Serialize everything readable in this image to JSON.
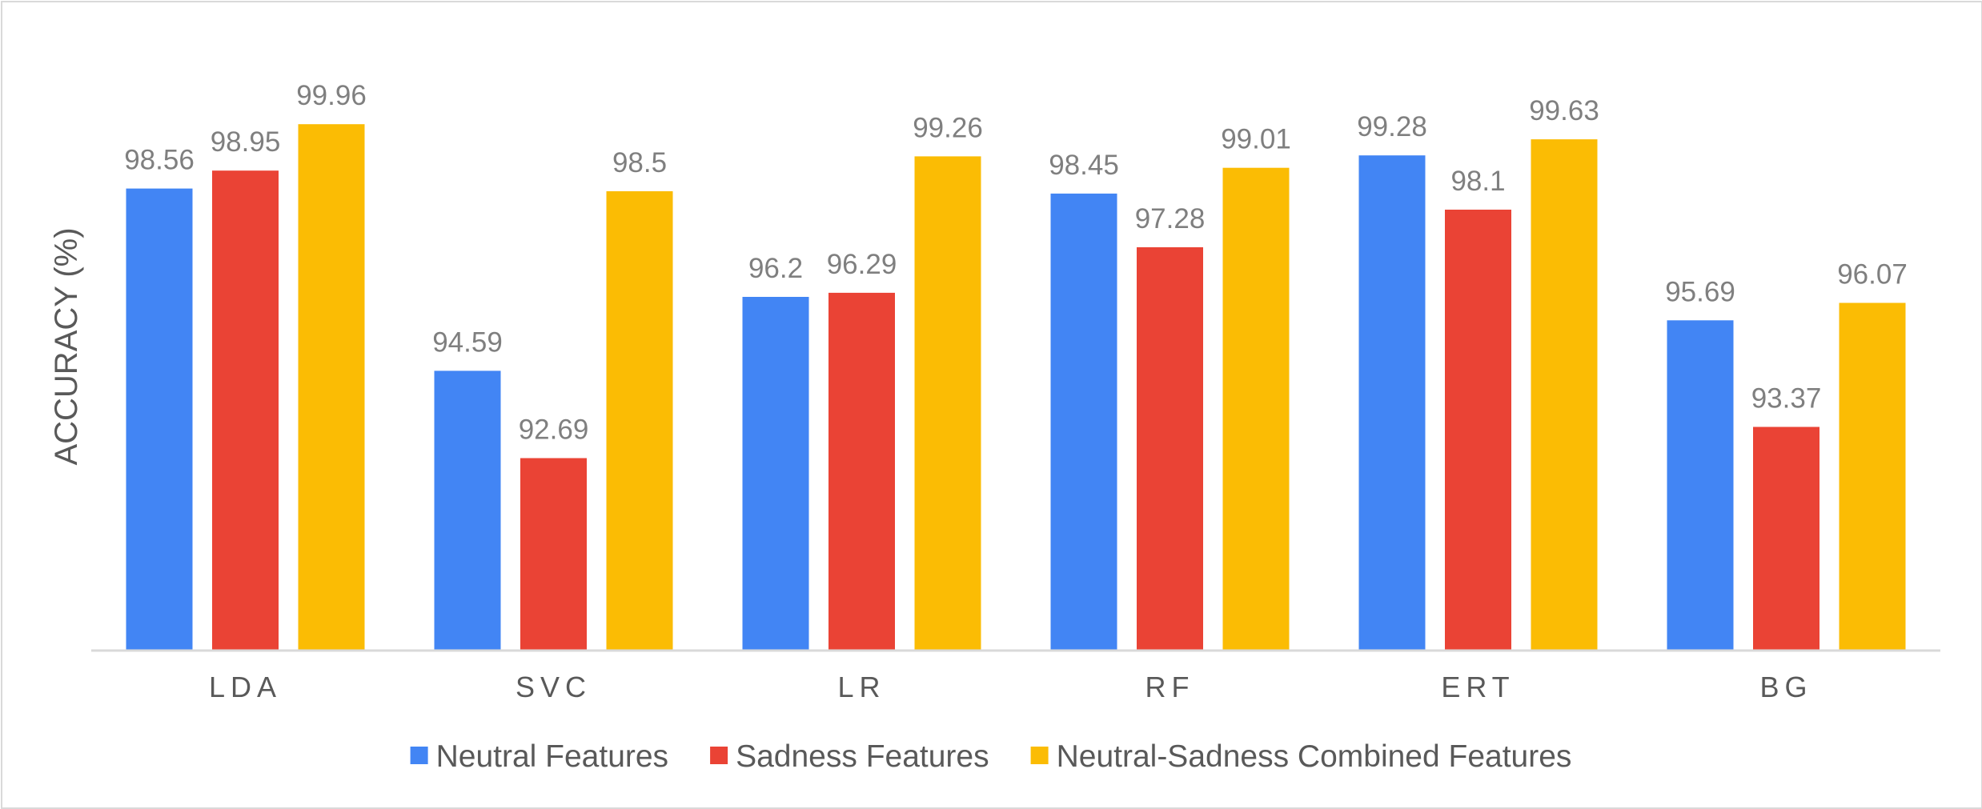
{
  "chart_data": {
    "type": "bar",
    "title": "",
    "xlabel": "",
    "ylabel": "ACCURACY (%)",
    "ylim": [
      88.5,
      100.7
    ],
    "grid": false,
    "legend_position": "bottom",
    "categories": [
      "LDA",
      "SVC",
      "LR",
      "RF",
      "ERT",
      "BG"
    ],
    "series": [
      {
        "name": "Neutral Features",
        "color": "#4285f4",
        "values": [
          98.56,
          94.59,
          96.2,
          98.45,
          99.28,
          95.69
        ]
      },
      {
        "name": "Sadness Features",
        "color": "#ea4335",
        "values": [
          98.95,
          92.69,
          96.29,
          97.28,
          98.1,
          93.37
        ]
      },
      {
        "name": "Neutral-Sadness Combined Features",
        "color": "#fbbc04",
        "values": [
          99.96,
          98.5,
          99.26,
          99.01,
          99.63,
          96.07
        ]
      }
    ]
  }
}
